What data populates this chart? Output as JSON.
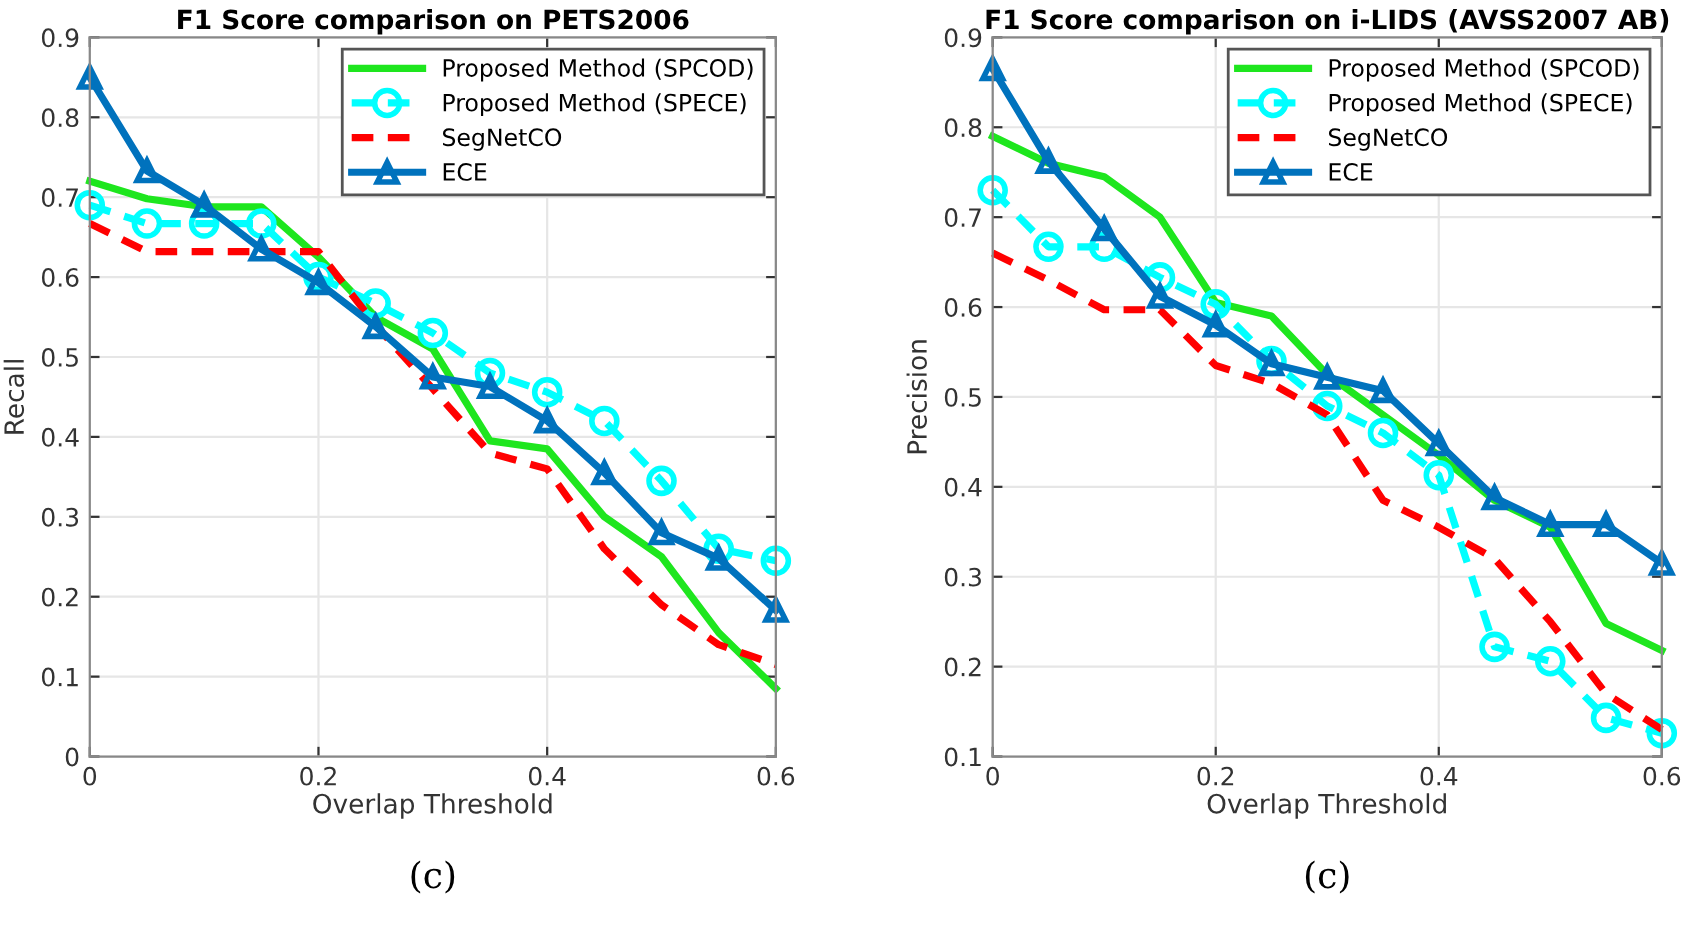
{
  "chart_data": [
    {
      "type": "line",
      "title": "F1 Score comparison on PETS2006",
      "xlabel": "Overlap Threshold",
      "ylabel": "Recall",
      "x": [
        0,
        0.05,
        0.1,
        0.15,
        0.2,
        0.25,
        0.3,
        0.35,
        0.4,
        0.45,
        0.5,
        0.55,
        0.6
      ],
      "xlim": [
        0,
        0.6
      ],
      "xticks": [
        0,
        0.2,
        0.4,
        0.6
      ],
      "ylim": [
        0,
        0.9
      ],
      "yticks": [
        0,
        0.1,
        0.2,
        0.3,
        0.4,
        0.5,
        0.6,
        0.7,
        0.8,
        0.9
      ],
      "grid": true,
      "legend": "top right",
      "annotations": [
        "(c)"
      ],
      "series": [
        {
          "name": "Proposed Method (SPCOD)",
          "color": "#1ee61e",
          "marker": "none",
          "line_style": "solid",
          "values": [
            0.72,
            0.698,
            0.688,
            0.688,
            0.625,
            0.55,
            0.51,
            0.395,
            0.385,
            0.3,
            0.25,
            0.155,
            0.085
          ]
        },
        {
          "name": "Proposed Method (SPECE)",
          "color": "#00ffff",
          "marker": "circle",
          "line_style": "dashed",
          "values": [
            0.69,
            0.667,
            0.667,
            0.667,
            0.6,
            0.567,
            0.53,
            0.48,
            0.456,
            0.42,
            0.345,
            0.26,
            0.245
          ]
        },
        {
          "name": "SegNetCO",
          "color": "#ff0000",
          "marker": "none",
          "line_style": "dashed",
          "values": [
            0.667,
            0.632,
            0.632,
            0.632,
            0.632,
            0.54,
            0.46,
            0.38,
            0.36,
            0.26,
            0.19,
            0.14,
            0.115
          ]
        },
        {
          "name": "ECE",
          "color": "#0072bd",
          "marker": "triangle",
          "line_style": "solid",
          "values": [
            0.85,
            0.733,
            0.69,
            0.635,
            0.593,
            0.538,
            0.475,
            0.463,
            0.42,
            0.355,
            0.28,
            0.248,
            0.183
          ]
        }
      ]
    },
    {
      "type": "line",
      "title": "F1 Score comparison on i-LIDS (AVSS2007 AB)",
      "xlabel": "Overlap Threshold",
      "ylabel": "Precision",
      "x": [
        0,
        0.05,
        0.1,
        0.15,
        0.2,
        0.25,
        0.3,
        0.35,
        0.4,
        0.45,
        0.5,
        0.55,
        0.6
      ],
      "xlim": [
        0,
        0.6
      ],
      "xticks": [
        0,
        0.2,
        0.4,
        0.6
      ],
      "ylim": [
        0.1,
        0.9
      ],
      "yticks": [
        0.1,
        0.2,
        0.3,
        0.4,
        0.5,
        0.6,
        0.7,
        0.8,
        0.9
      ],
      "grid": true,
      "legend": "top right",
      "annotations": [
        "(c)"
      ],
      "series": [
        {
          "name": "Proposed Method (SPCOD)",
          "color": "#1ee61e",
          "marker": "none",
          "line_style": "solid",
          "values": [
            0.79,
            0.76,
            0.745,
            0.7,
            0.605,
            0.59,
            0.525,
            0.48,
            0.435,
            0.385,
            0.355,
            0.248,
            0.218
          ]
        },
        {
          "name": "Proposed Method (SPECE)",
          "color": "#00ffff",
          "marker": "circle",
          "line_style": "dashed",
          "values": [
            0.73,
            0.667,
            0.667,
            0.633,
            0.603,
            0.54,
            0.49,
            0.46,
            0.413,
            0.222,
            0.206,
            0.143,
            0.126
          ]
        },
        {
          "name": "SegNetCO",
          "color": "#ff0000",
          "marker": "none",
          "line_style": "dashed",
          "values": [
            0.66,
            0.63,
            0.597,
            0.597,
            0.535,
            0.515,
            0.48,
            0.385,
            0.355,
            0.32,
            0.25,
            0.17,
            0.13
          ]
        },
        {
          "name": "ECE",
          "color": "#0072bd",
          "marker": "triangle",
          "line_style": "solid",
          "values": [
            0.865,
            0.762,
            0.687,
            0.612,
            0.58,
            0.537,
            0.522,
            0.507,
            0.448,
            0.388,
            0.358,
            0.358,
            0.315
          ]
        }
      ]
    }
  ]
}
